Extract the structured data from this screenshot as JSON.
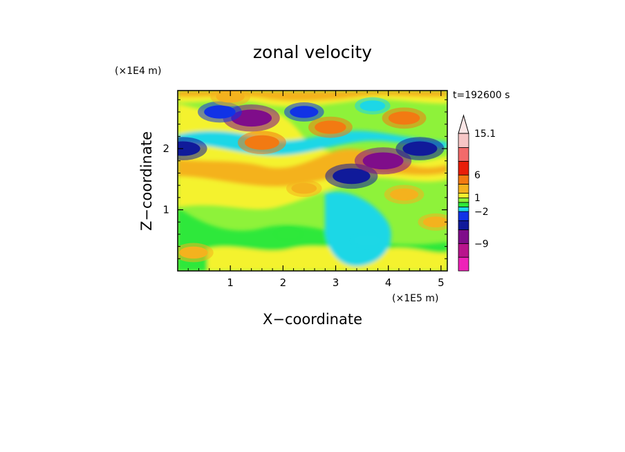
{
  "chart_data": {
    "type": "heatmap",
    "title": "zonal velocity",
    "xlabel": "X−coordinate",
    "ylabel": "Z−coordinate",
    "x_multiplier": "(×1E5 m)",
    "y_multiplier": "(×1E4 m)",
    "time_label": "t=192600 s",
    "x_ticks": [
      "1",
      "2",
      "3",
      "4",
      "5"
    ],
    "y_ticks": [
      "1",
      "2"
    ],
    "xlim": [
      0,
      5.12
    ],
    "ylim": [
      0,
      2.95
    ],
    "colorbar": {
      "labels": [
        "15.1",
        "6",
        "1",
        "−2",
        "−9"
      ],
      "label_values": [
        15.1,
        6,
        1,
        -2,
        -9
      ],
      "levels": [
        -15,
        -12,
        -9,
        -6,
        -4,
        -2,
        -1,
        0,
        1,
        2,
        4,
        6,
        9,
        12,
        15.1
      ],
      "colors": [
        "#ee22b8",
        "#b8148c",
        "#7f0d8a",
        "#101a9a",
        "#1133e6",
        "#1dd7e6",
        "#2ee83a",
        "#8ef23a",
        "#f4f22e",
        "#f4b21e",
        "#f27a12",
        "#e81e0a",
        "#f26a6a",
        "#f7c6c6"
      ],
      "extend": "max"
    },
    "features": [
      {
        "x": 1.4,
        "z": 2.5,
        "value": -7
      },
      {
        "x": 0.8,
        "z": 2.6,
        "value": -4
      },
      {
        "x": 0.1,
        "z": 2.0,
        "value": -5
      },
      {
        "x": 3.3,
        "z": 1.55,
        "value": -6
      },
      {
        "x": 3.9,
        "z": 1.8,
        "value": -7
      },
      {
        "x": 4.6,
        "z": 2.0,
        "value": -5
      },
      {
        "x": 2.4,
        "z": 2.6,
        "value": -3
      },
      {
        "x": 3.7,
        "z": 2.7,
        "value": -2
      },
      {
        "x": 2.9,
        "z": 2.35,
        "value": 4
      },
      {
        "x": 1.6,
        "z": 2.1,
        "value": 5
      },
      {
        "x": 4.3,
        "z": 2.5,
        "value": 4
      },
      {
        "x": 1.0,
        "z": 2.85,
        "value": 3
      },
      {
        "x": 4.3,
        "z": 1.25,
        "value": 3
      },
      {
        "x": 2.4,
        "z": 1.35,
        "value": 2
      },
      {
        "x": 2.1,
        "z": 0.6,
        "value": -1
      },
      {
        "x": 3.6,
        "z": 0.5,
        "value": -2
      },
      {
        "x": 4.9,
        "z": 0.8,
        "value": 2
      },
      {
        "x": 0.3,
        "z": 0.3,
        "value": 3
      }
    ]
  }
}
